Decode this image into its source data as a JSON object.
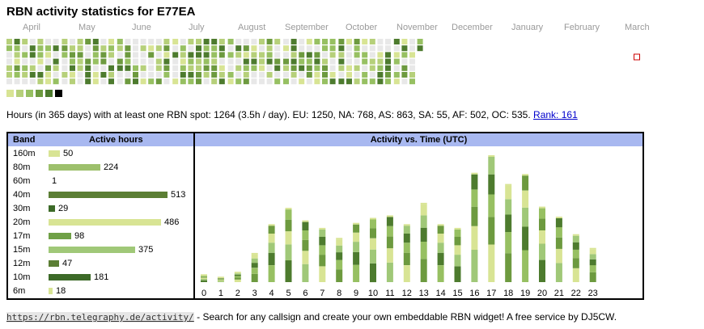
{
  "title": "RBN activity statistics for E77EA",
  "months": [
    "April",
    "May",
    "June",
    "July",
    "August",
    "September",
    "October",
    "November",
    "December",
    "January",
    "February",
    "March"
  ],
  "colors": {
    "empty": "#e8e8e8",
    "levels": [
      "#d8e494",
      "#b6d07a",
      "#97c062",
      "#6d9a3f",
      "#4d7b2e",
      "#000000"
    ],
    "header_bg": "#a8b8f0",
    "today_marker": "#cc0000"
  },
  "summary": {
    "text": "Hours (in 365 days) with at least one RBN spot: 1264 (3.5h / day). EU: 1250, NA: 768, AS: 863, SA: 55, AF: 502, OC: 535.",
    "rank_text": "Rank: 161"
  },
  "bands_table": {
    "header_band": "Band",
    "header_active": "Active hours",
    "rows": [
      {
        "band": "160m",
        "hours": 50,
        "color": "#d8e494"
      },
      {
        "band": "80m",
        "hours": 224,
        "color": "#9dc06c"
      },
      {
        "band": "60m",
        "hours": 1,
        "color": "#d8e494"
      },
      {
        "band": "40m",
        "hours": 513,
        "color": "#5b7e34"
      },
      {
        "band": "30m",
        "hours": 29,
        "color": "#3c6a28"
      },
      {
        "band": "20m",
        "hours": 486,
        "color": "#d8e494"
      },
      {
        "band": "17m",
        "hours": 98,
        "color": "#6fa046"
      },
      {
        "band": "15m",
        "hours": 375,
        "color": "#a0c878"
      },
      {
        "band": "12m",
        "hours": 47,
        "color": "#5b7e34"
      },
      {
        "band": "10m",
        "hours": 181,
        "color": "#3c6a28"
      },
      {
        "band": "6m",
        "hours": 18,
        "color": "#d8e494"
      }
    ]
  },
  "chart_data": {
    "type": "bar",
    "title": "Activity vs. Time (UTC)",
    "x": [
      "0",
      "1",
      "2",
      "3",
      "4",
      "5",
      "6",
      "7",
      "8",
      "9",
      "10",
      "11",
      "12",
      "13",
      "14",
      "15",
      "16",
      "17",
      "18",
      "19",
      "20",
      "21",
      "22",
      "23"
    ],
    "stacked": true,
    "total_values": [
      5,
      3,
      7,
      22,
      45,
      58,
      48,
      42,
      34,
      46,
      50,
      52,
      45,
      62,
      45,
      42,
      86,
      100,
      77,
      85,
      59,
      51,
      37,
      26
    ],
    "series_colors": [
      "#4d7b2e",
      "#a0c878",
      "#d8e494",
      "#6d9a3f",
      "#97c062"
    ]
  },
  "footer": {
    "url": "https://rbn.telegraphy.de/activity/",
    "text": " - Search for any callsign and create your own embeddable RBN widget! A free service by DJ5CW."
  }
}
